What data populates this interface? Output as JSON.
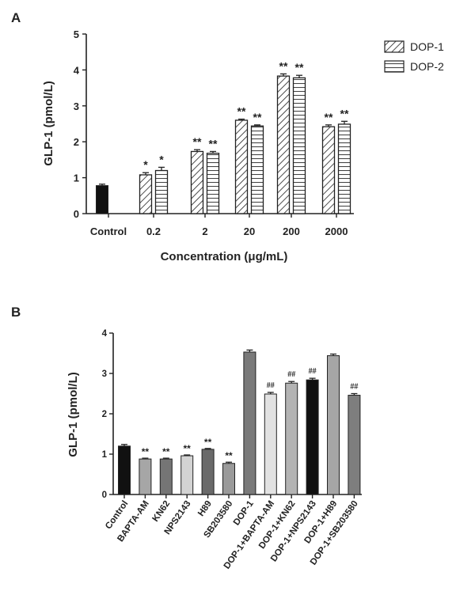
{
  "chart_data": [
    {
      "panel": "A",
      "type": "bar",
      "ylabel": "GLP-1 (pmol/L)",
      "xlabel": "Concentration (μg/mL)",
      "ylim": [
        0,
        5
      ],
      "yticks": [
        "0",
        "1",
        "2",
        "3",
        "4",
        "5"
      ],
      "categories": [
        "Control",
        "0.2",
        "2",
        "20",
        "200",
        "2000"
      ],
      "control": {
        "label": "Control",
        "value": 0.78,
        "error": 0.04,
        "color": "#111111"
      },
      "series": [
        {
          "name": "DOP-1",
          "pattern": "diagonal-hatch",
          "values": [
            null,
            1.08,
            1.73,
            2.6,
            3.83,
            2.42
          ],
          "errors": [
            null,
            0.06,
            0.05,
            0.03,
            0.06,
            0.05
          ],
          "significance": [
            "",
            "*",
            "**",
            "**",
            "**",
            "**"
          ]
        },
        {
          "name": "DOP-2",
          "pattern": "horizontal-lines",
          "values": [
            null,
            1.2,
            1.68,
            2.44,
            3.78,
            2.49
          ],
          "errors": [
            null,
            0.09,
            0.05,
            0.03,
            0.07,
            0.08
          ],
          "significance": [
            "",
            "*",
            "**",
            "**",
            "**",
            "**"
          ]
        }
      ],
      "legend_position": "top-right"
    },
    {
      "panel": "B",
      "type": "bar",
      "ylabel": "GLP-1 (pmol/L)",
      "ylim": [
        0,
        4
      ],
      "yticks": [
        "0",
        "1",
        "2",
        "3",
        "4"
      ],
      "categories": [
        "Control",
        "BAPTA-AM",
        "KN62",
        "NPS2143",
        "H89",
        "SB203580",
        "DOP-1",
        "DOP-1+BAPTA-AM",
        "DOP-1+KN62",
        "DOP-1+NPS2143",
        "DOP-1+H89",
        "DOP-1+SB203580"
      ],
      "values": [
        1.2,
        0.88,
        0.88,
        0.96,
        1.12,
        0.77,
        3.53,
        2.49,
        2.76,
        2.84,
        3.44,
        2.46
      ],
      "errors": [
        0.04,
        0.02,
        0.02,
        0.02,
        0.02,
        0.03,
        0.05,
        0.04,
        0.04,
        0.04,
        0.04,
        0.04
      ],
      "colors": [
        "#111111",
        "#a6a6a6",
        "#757575",
        "#d3d3d3",
        "#6a6a6a",
        "#9a9a9a",
        "#7a7a7a",
        "#e2e2e2",
        "#b3b3b3",
        "#111111",
        "#a6a6a6",
        "#7e7e7e"
      ],
      "significance": [
        "",
        "**",
        "**",
        "**",
        "**",
        "**",
        "",
        "##",
        "##",
        "##",
        "",
        "##"
      ]
    }
  ],
  "panels": {
    "a": "A",
    "b": "B"
  },
  "colors": {
    "ink": "#222222",
    "bar_outline": "#222222"
  }
}
